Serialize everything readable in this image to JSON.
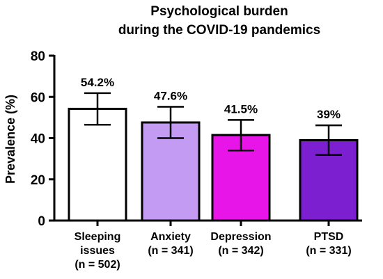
{
  "chart_data": {
    "type": "bar",
    "title": [
      "Psychological burden",
      "during the COVID-19 pandemics"
    ],
    "xlabel": "",
    "ylabel": "Prevalence (%)",
    "ylim": [
      0,
      80
    ],
    "yticks": [
      0,
      20,
      40,
      60,
      80
    ],
    "grid": false,
    "legend": "none",
    "categories": [
      {
        "lines": [
          "Sleeping",
          "issues",
          "(n = 502)"
        ]
      },
      {
        "lines": [
          "Anxiety",
          "(n = 341)"
        ]
      },
      {
        "lines": [
          "Depression",
          "(n = 342)"
        ]
      },
      {
        "lines": [
          "PTSD",
          "(n = 331)"
        ]
      }
    ],
    "values": [
      54.2,
      47.6,
      41.5,
      39
    ],
    "error_low": [
      46.5,
      40,
      34,
      31.8
    ],
    "error_high": [
      61.8,
      55.2,
      48.8,
      46.2
    ],
    "data_labels": [
      "54.2%",
      "47.6%",
      "41.5%",
      "39%"
    ],
    "colors": [
      "#ffffff",
      "#c49bf2",
      "#e815e8",
      "#7b1fd0"
    ],
    "edge_color": "#000000"
  }
}
